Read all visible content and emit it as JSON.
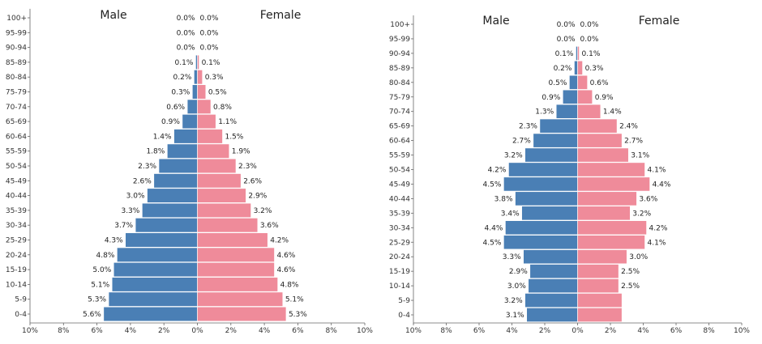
{
  "chart_data": [
    {
      "type": "bar",
      "orientation": "horizontal",
      "layout": "population-pyramid",
      "categories": [
        "0-4",
        "5-9",
        "10-14",
        "15-19",
        "20-24",
        "25-29",
        "30-34",
        "35-39",
        "40-44",
        "45-49",
        "50-54",
        "55-59",
        "60-64",
        "65-69",
        "70-74",
        "75-79",
        "80-84",
        "85-89",
        "90-94",
        "95-99",
        "100+"
      ],
      "series": [
        {
          "name": "Male",
          "color": "#4a7fb5",
          "values": [
            5.6,
            5.3,
            5.1,
            5.0,
            4.8,
            4.3,
            3.7,
            3.3,
            3.0,
            2.6,
            2.3,
            1.8,
            1.4,
            0.9,
            0.6,
            0.3,
            0.2,
            0.1,
            0.0,
            0.0,
            0.0
          ],
          "labels": [
            "5.6%",
            "5.3%",
            "5.1%",
            "5.0%",
            "4.8%",
            "4.3%",
            "3.7%",
            "3.3%",
            "3.0%",
            "2.6%",
            "2.3%",
            "1.8%",
            "1.4%",
            "0.9%",
            "0.6%",
            "0.3%",
            "0.2%",
            "0.1%",
            "0.0%",
            "0.0%",
            "0.0%"
          ]
        },
        {
          "name": "Female",
          "color": "#ef8b9a",
          "values": [
            5.3,
            5.1,
            4.8,
            4.6,
            4.6,
            4.2,
            3.6,
            3.2,
            2.9,
            2.6,
            2.3,
            1.9,
            1.5,
            1.1,
            0.8,
            0.5,
            0.3,
            0.1,
            0.0,
            0.0,
            0.0
          ],
          "labels": [
            "5.3%",
            "5.1%",
            "4.8%",
            "4.6%",
            "4.6%",
            "4.2%",
            "3.6%",
            "3.2%",
            "2.9%",
            "2.6%",
            "2.3%",
            "1.9%",
            "1.5%",
            "1.1%",
            "0.8%",
            "0.5%",
            "0.3%",
            "0.1%",
            "0.0%",
            "0.0%",
            "0.0%"
          ]
        }
      ],
      "xlim": [
        -10,
        10
      ],
      "xticks": [
        "10%",
        "8%",
        "6%",
        "4%",
        "2%",
        "0%",
        "2%",
        "4%",
        "6%",
        "8%",
        "10%"
      ]
    },
    {
      "type": "bar",
      "orientation": "horizontal",
      "layout": "population-pyramid",
      "categories": [
        "0-4",
        "5-9",
        "10-14",
        "15-19",
        "20-24",
        "25-29",
        "30-34",
        "35-39",
        "40-44",
        "45-49",
        "50-54",
        "55-59",
        "60-64",
        "65-69",
        "70-74",
        "75-79",
        "80-84",
        "85-89",
        "90-94",
        "95-99",
        "100+"
      ],
      "series": [
        {
          "name": "Male",
          "color": "#4a7fb5",
          "values": [
            3.1,
            3.2,
            3.0,
            2.9,
            3.3,
            4.5,
            4.4,
            3.4,
            3.8,
            4.5,
            4.2,
            3.2,
            2.7,
            2.3,
            1.3,
            0.9,
            0.5,
            0.2,
            0.1,
            0.0,
            0.0
          ],
          "labels": [
            "3.1%",
            "3.2%",
            "3.0%",
            "2.9%",
            "3.3%",
            "4.5%",
            "4.4%",
            "3.4%",
            "3.8%",
            "4.5%",
            "4.2%",
            "3.2%",
            "2.7%",
            "2.3%",
            "1.3%",
            "0.9%",
            "0.5%",
            "0.2%",
            "0.1%",
            "0.0%",
            "0.0%"
          ]
        },
        {
          "name": "Female",
          "color": "#ef8b9a",
          "values": [
            2.7,
            2.7,
            2.5,
            2.5,
            3.0,
            4.1,
            4.2,
            3.2,
            3.6,
            4.4,
            4.1,
            3.1,
            2.7,
            2.4,
            1.4,
            0.9,
            0.6,
            0.3,
            0.1,
            0.0,
            0.0
          ],
          "labels": [
            "",
            "",
            "2.5%",
            "2.5%",
            "3.0%",
            "4.1%",
            "4.2%",
            "3.2%",
            "3.6%",
            "4.4%",
            "4.1%",
            "3.1%",
            "2.7%",
            "2.4%",
            "1.4%",
            "0.9%",
            "0.6%",
            "0.3%",
            "0.1%",
            "0.0%",
            "0.0%"
          ]
        }
      ],
      "xlim": [
        -10,
        10
      ],
      "xticks": [
        "10%",
        "8%",
        "6%",
        "4%",
        "2%",
        "0%",
        "2%",
        "4%",
        "6%",
        "8%",
        "10%"
      ]
    }
  ]
}
